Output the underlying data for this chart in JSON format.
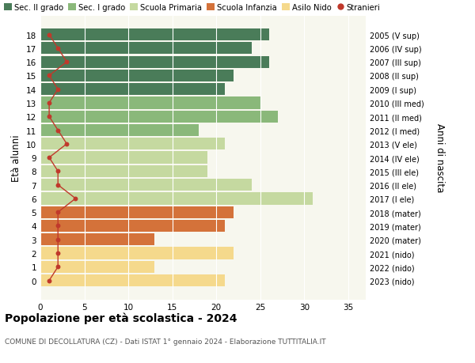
{
  "ages": [
    18,
    17,
    16,
    15,
    14,
    13,
    12,
    11,
    10,
    9,
    8,
    7,
    6,
    5,
    4,
    3,
    2,
    1,
    0
  ],
  "right_labels": [
    "2005 (V sup)",
    "2006 (IV sup)",
    "2007 (III sup)",
    "2008 (II sup)",
    "2009 (I sup)",
    "2010 (III med)",
    "2011 (II med)",
    "2012 (I med)",
    "2013 (V ele)",
    "2014 (IV ele)",
    "2015 (III ele)",
    "2016 (II ele)",
    "2017 (I ele)",
    "2018 (mater)",
    "2019 (mater)",
    "2020 (mater)",
    "2021 (nido)",
    "2022 (nido)",
    "2023 (nido)"
  ],
  "bar_values": [
    26,
    24,
    26,
    22,
    21,
    25,
    27,
    18,
    21,
    19,
    19,
    24,
    31,
    22,
    21,
    13,
    22,
    13,
    21
  ],
  "bar_colors": [
    "#4a7c59",
    "#4a7c59",
    "#4a7c59",
    "#4a7c59",
    "#4a7c59",
    "#8ab87a",
    "#8ab87a",
    "#8ab87a",
    "#c5d9a0",
    "#c5d9a0",
    "#c5d9a0",
    "#c5d9a0",
    "#c5d9a0",
    "#d4723a",
    "#d4723a",
    "#d4723a",
    "#f5d98c",
    "#f5d98c",
    "#f5d98c"
  ],
  "stranieri_values": [
    1,
    2,
    3,
    1,
    2,
    1,
    1,
    2,
    3,
    1,
    2,
    2,
    4,
    2,
    2,
    2,
    2,
    2,
    1
  ],
  "legend_labels": [
    "Sec. II grado",
    "Sec. I grado",
    "Scuola Primaria",
    "Scuola Infanzia",
    "Asilo Nido",
    "Stranieri"
  ],
  "legend_colors": [
    "#4a7c59",
    "#8ab87a",
    "#c5d9a0",
    "#d4723a",
    "#f5d98c",
    "#c0392b"
  ],
  "title": "Popolazione per età scolastica - 2024",
  "subtitle": "COMUNE DI DECOLLATURA (CZ) - Dati ISTAT 1° gennaio 2024 - Elaborazione TUTTITALIA.IT",
  "ylabel": "Età alunni",
  "right_ylabel": "Anni di nascita",
  "xlim": [
    0,
    37
  ],
  "xticks": [
    0,
    5,
    10,
    15,
    20,
    25,
    30,
    35
  ],
  "background_color": "#ffffff",
  "axes_bg": "#f7f7ee"
}
